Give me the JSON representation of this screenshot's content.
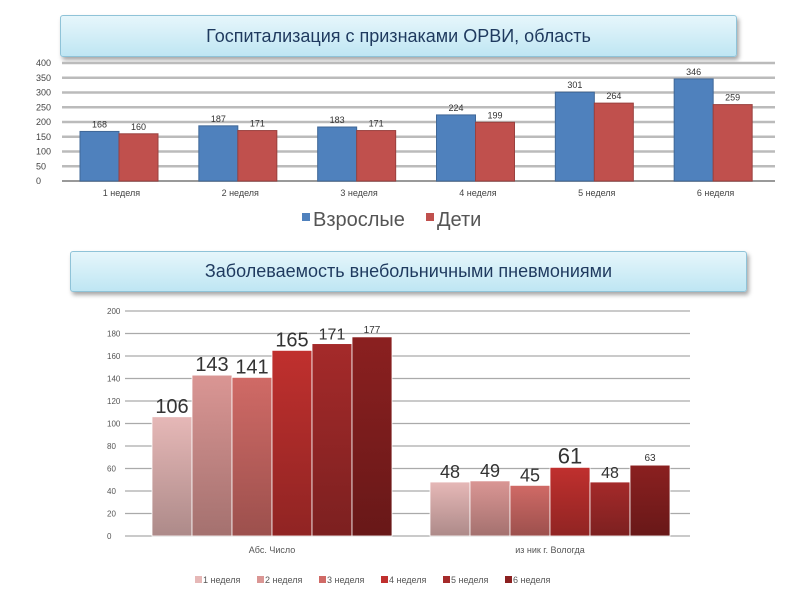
{
  "chart_data": [
    {
      "type": "bar",
      "title": "Госпитализация  с признаками ОРВИ, область",
      "categories": [
        "1 неделя",
        "2 неделя",
        "3 неделя",
        "4 неделя",
        "5 неделя",
        "6 неделя"
      ],
      "series": [
        {
          "name": "Взрослые",
          "color": "#4f81bd",
          "values": [
            168,
            187,
            183,
            224,
            301,
            346
          ]
        },
        {
          "name": "Дети",
          "color": "#c0504d",
          "values": [
            160,
            171,
            171,
            199,
            264,
            259
          ]
        }
      ],
      "ylim": [
        0,
        400
      ],
      "yticks": [
        0,
        50,
        100,
        150,
        200,
        250,
        300,
        350,
        400
      ],
      "grid": true,
      "legend": "bottom-center"
    },
    {
      "type": "bar",
      "title": "Заболеваемость внебольничными пневмониями",
      "categories": [
        "Абс. Число",
        "из ник г. Вологда"
      ],
      "series": [
        {
          "name": "1 неделя",
          "color": "#e6b8b7",
          "values": [
            106,
            48
          ]
        },
        {
          "name": "2 неделя",
          "color": "#da9694",
          "values": [
            143,
            49
          ]
        },
        {
          "name": "3 неделя",
          "color": "#d06a66",
          "values": [
            141,
            45
          ]
        },
        {
          "name": "4 неделя",
          "color": "#c0302e",
          "values": [
            165,
            61
          ]
        },
        {
          "name": "5 неделя",
          "color": "#a52a2a",
          "values": [
            171,
            48
          ]
        },
        {
          "name": "6 неделя",
          "color": "#8b2020",
          "values": [
            177,
            63
          ]
        }
      ],
      "ylim": [
        0,
        200
      ],
      "yticks": [
        0,
        20,
        40,
        60,
        80,
        100,
        120,
        140,
        160,
        180,
        200
      ],
      "grid": true,
      "legend": "bottom"
    }
  ]
}
